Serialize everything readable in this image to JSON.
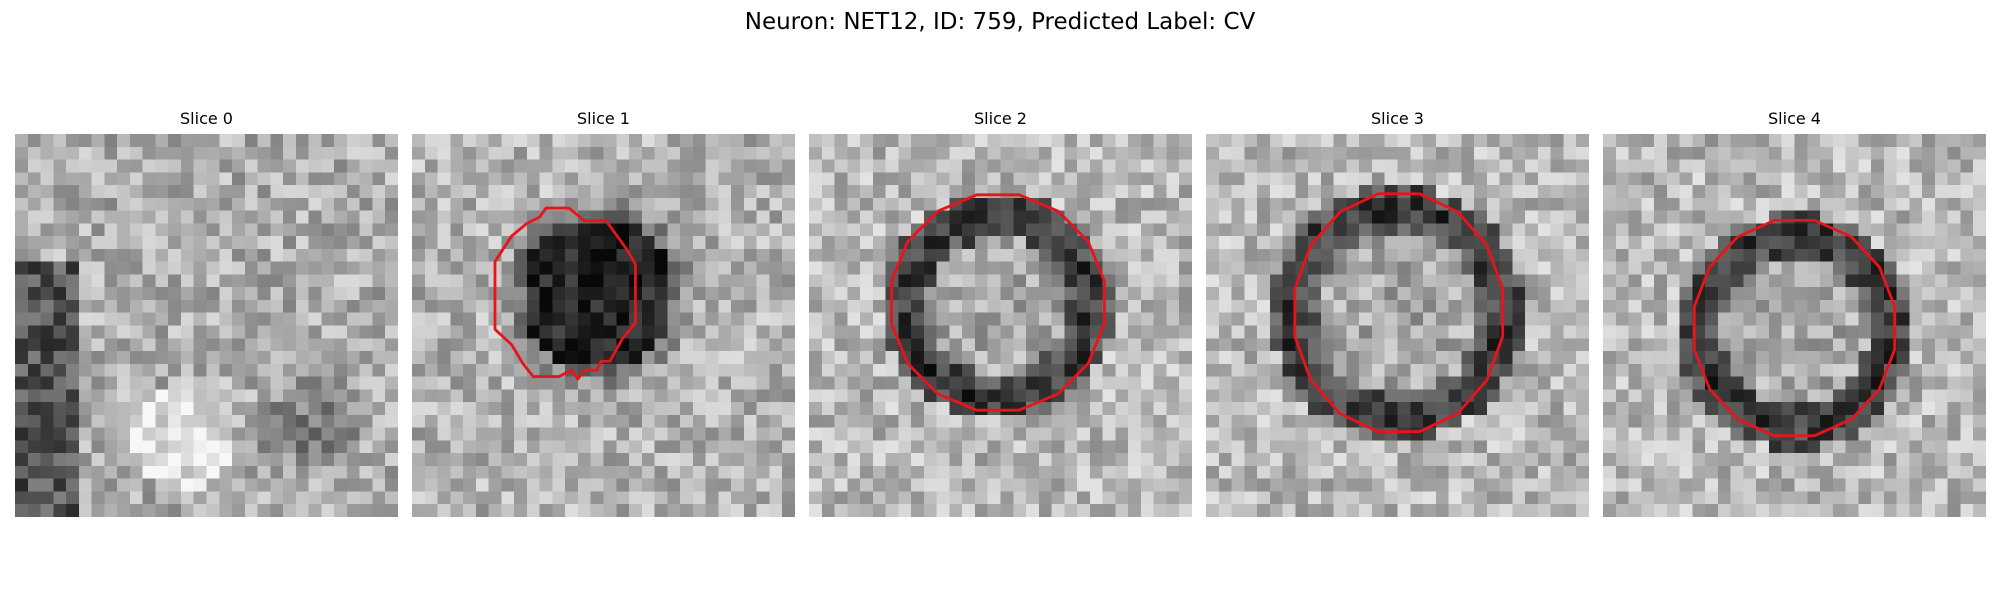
{
  "figure": {
    "title": "Neuron: NET12, ID: 759, Predicted Label: CV"
  },
  "colors": {
    "background": "#ffffff",
    "contour": "#e8141c",
    "text": "#000000"
  },
  "panels": [
    {
      "title": "Slice 0",
      "has_contour": false,
      "image": "grayscale-em-patch"
    },
    {
      "title": "Slice 1",
      "has_contour": true,
      "image": "grayscale-em-patch"
    },
    {
      "title": "Slice 2",
      "has_contour": true,
      "image": "grayscale-em-patch"
    },
    {
      "title": "Slice 3",
      "has_contour": true,
      "image": "grayscale-em-patch"
    },
    {
      "title": "Slice 4",
      "has_contour": true,
      "image": "grayscale-em-patch"
    }
  ]
}
